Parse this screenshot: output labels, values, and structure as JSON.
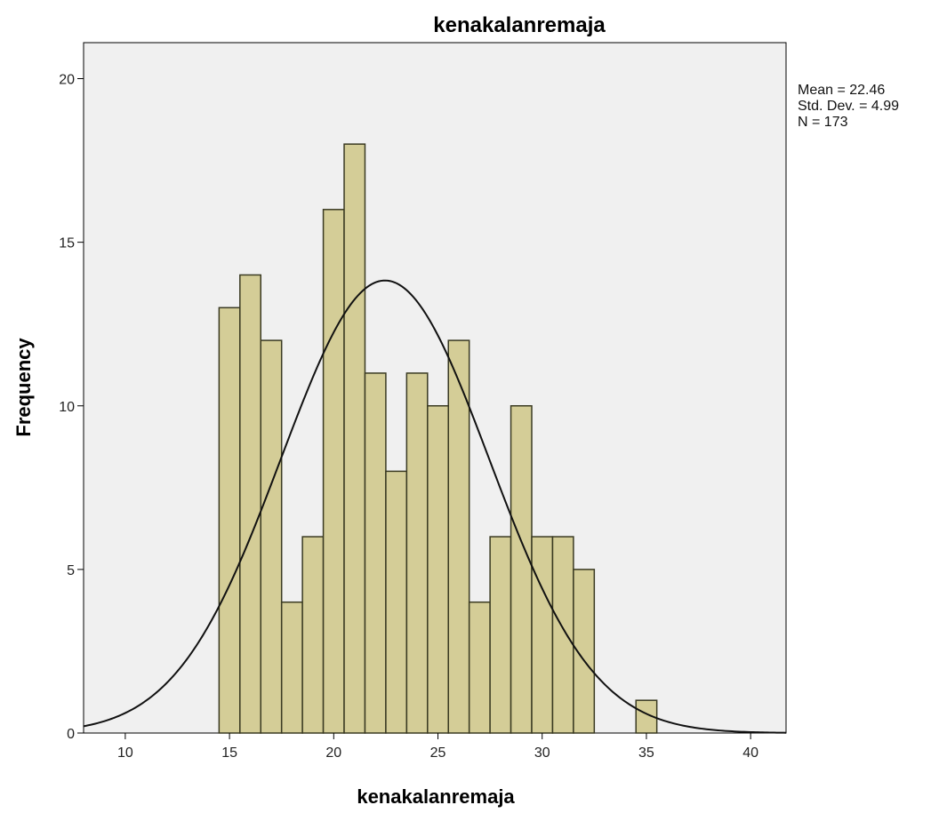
{
  "chart_data": {
    "type": "bar",
    "title": "kenakalanremaja",
    "xlabel": "kenakalanremaja",
    "ylabel": "Frequency",
    "xlim": [
      8,
      41.7
    ],
    "ylim": [
      0,
      21.1
    ],
    "xticks": [
      10,
      15,
      20,
      25,
      30,
      35,
      40
    ],
    "yticks": [
      0,
      5,
      10,
      15,
      20
    ],
    "bins": [
      {
        "x": 15,
        "count": 13
      },
      {
        "x": 16,
        "count": 14
      },
      {
        "x": 17,
        "count": 12
      },
      {
        "x": 18,
        "count": 4
      },
      {
        "x": 19,
        "count": 6
      },
      {
        "x": 20,
        "count": 16
      },
      {
        "x": 21,
        "count": 18
      },
      {
        "x": 22,
        "count": 11
      },
      {
        "x": 23,
        "count": 8
      },
      {
        "x": 24,
        "count": 11
      },
      {
        "x": 25,
        "count": 10
      },
      {
        "x": 26,
        "count": 12
      },
      {
        "x": 27,
        "count": 4
      },
      {
        "x": 28,
        "count": 6
      },
      {
        "x": 29,
        "count": 10
      },
      {
        "x": 30,
        "count": 6
      },
      {
        "x": 31,
        "count": 6
      },
      {
        "x": 32,
        "count": 5
      },
      {
        "x": 35,
        "count": 1
      }
    ],
    "bin_width": 1,
    "normal_curve": {
      "mean": 22.46,
      "std": 4.99,
      "n": 173
    },
    "stats": [
      "Mean = 22.46",
      "Std. Dev. = 4.99",
      "N = 173"
    ],
    "colors": {
      "bar_fill": "#D4CD97",
      "bar_stroke": "#3A3A22",
      "plot_bg": "#F0F0F0",
      "curve": "#111111"
    },
    "grid": false,
    "legend": "none"
  }
}
